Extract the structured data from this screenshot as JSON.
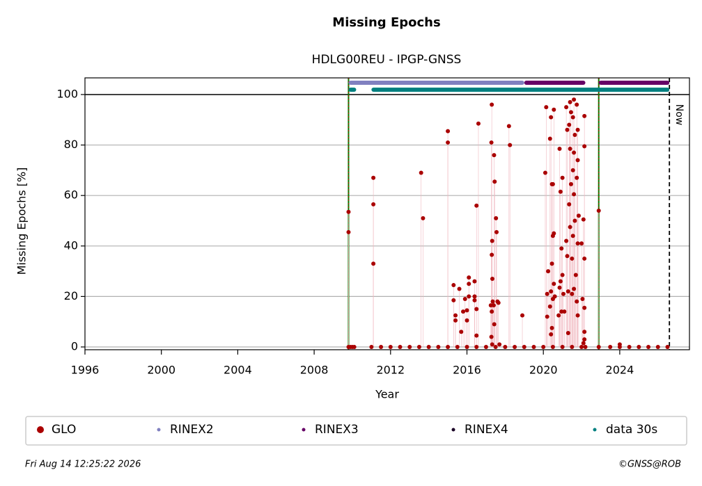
{
  "chart_data": {
    "type": "scatter",
    "title": "Missing Epochs",
    "subtitle": "HDLG00REU - IPGP-GNSS",
    "xlabel": "Year",
    "ylabel": "Missing Epochs [%]",
    "xlim": [
      1996,
      2027.65
    ],
    "ylim": [
      -1.1,
      106.6
    ],
    "xticks": [
      1996,
      2000,
      2004,
      2008,
      2012,
      2016,
      2020,
      2024
    ],
    "yticks": [
      0,
      20,
      40,
      60,
      80,
      100
    ],
    "grid": true,
    "series": [
      {
        "name": "GLO",
        "color": "#aa0000",
        "x": [
          2009.8,
          2009.8,
          2011.1,
          2011.1,
          2011.1,
          2013.6,
          2013.7,
          2015.0,
          2015.0,
          2015.3,
          2015.3,
          2015.4,
          2015.4,
          2015.6,
          2015.7,
          2015.8,
          2015.9,
          2016.0,
          2016.0,
          2016.1,
          2016.1,
          2016.1,
          2016.4,
          2016.4,
          2016.4,
          2016.5,
          2016.5,
          2016.5,
          2016.6,
          2017.3,
          2017.28,
          2017.32,
          2017.3,
          2017.33,
          2017.35,
          2017.25,
          2017.3,
          2017.28,
          2017.32,
          2017.42,
          2017.45,
          2017.4,
          2017.43,
          2017.52,
          2017.55,
          2017.6,
          2017.65,
          2017.7,
          2018.2,
          2018.25,
          2018.9,
          2020.15,
          2020.1,
          2020.25,
          2020.2,
          2020.2,
          2020.35,
          2020.4,
          2020.45,
          2020.45,
          2020.4,
          2020.5,
          2020.35,
          2020.45,
          2020.4,
          2020.55,
          2020.5,
          2020.55,
          2020.5,
          2020.55,
          2020.6,
          2020.85,
          2020.9,
          2020.95,
          2020.9,
          2020.85,
          2020.95,
          2020.8,
          2021.0,
          2021.0,
          2021.05,
          2021.1,
          2021.2,
          2021.25,
          2021.2,
          2021.25,
          2021.3,
          2021.3,
          2021.4,
          2021.45,
          2021.35,
          2021.4,
          2021.45,
          2021.35,
          2021.4,
          2021.5,
          2021.5,
          2021.6,
          2021.55,
          2021.65,
          2021.6,
          2021.55,
          2021.6,
          2021.65,
          2021.55,
          2021.7,
          2021.6,
          2021.75,
          2021.8,
          2021.8,
          2021.75,
          2021.85,
          2021.8,
          2021.75,
          2021.8,
          2022.15,
          2022.15,
          2022.1,
          2022.0,
          2022.15,
          2022.05,
          2022.15,
          2022.15,
          2022.15,
          2022.1,
          2022.9,
          2024.0,
          2009.8,
          2009.9,
          2010.0,
          2010.1,
          2011.0,
          2011.5,
          2012.0,
          2012.5,
          2013.0,
          2013.5,
          2014.0,
          2014.5,
          2015.0,
          2015.5,
          2016.0,
          2016.5,
          2017.0,
          2017.5,
          2018.0,
          2018.5,
          2019.0,
          2019.5,
          2020.0,
          2020.5,
          2021.0,
          2021.5,
          2022.0,
          2022.2,
          2022.9,
          2023.5,
          2024.0,
          2024.5,
          2025.0,
          2025.5,
          2026.0,
          2026.5
        ],
        "values": [
          53.5,
          45.5,
          67,
          56.5,
          33,
          69,
          51,
          85.5,
          81,
          24.5,
          18.5,
          12.5,
          10.5,
          23,
          6,
          14,
          19,
          14.5,
          10.5,
          25,
          27.5,
          20,
          26,
          20,
          18.5,
          56,
          4.5,
          15,
          88.5,
          96,
          81,
          42,
          36.5,
          27,
          18,
          16.5,
          14,
          4,
          1,
          76,
          65.5,
          16.5,
          9,
          51,
          45.5,
          18,
          17.5,
          1,
          87.5,
          80,
          12.5,
          95,
          69,
          30,
          21,
          12,
          82.5,
          91,
          64.5,
          33,
          22,
          19,
          16,
          7.5,
          5,
          94,
          64.5,
          45,
          44,
          25,
          20,
          78.5,
          61.5,
          39,
          26,
          23.5,
          14,
          12.5,
          67,
          28.5,
          21,
          14,
          95,
          86,
          42,
          36,
          22,
          5.5,
          97,
          93,
          88,
          78.5,
          64.5,
          56.5,
          47.5,
          35,
          21,
          98,
          91,
          84,
          77,
          70,
          60.5,
          50,
          44,
          28.5,
          23,
          96,
          86,
          74,
          67,
          52,
          41,
          18,
          12.5,
          91.5,
          79.5,
          50.5,
          41,
          35,
          19,
          15.5,
          6,
          3,
          1.5,
          54,
          1,
          0,
          0,
          0,
          0,
          0,
          0,
          0,
          0,
          0,
          0,
          0,
          0,
          0,
          0,
          0,
          0,
          0,
          0,
          0,
          0,
          0,
          0,
          0,
          0,
          0,
          0,
          0,
          0,
          0,
          0,
          0,
          0,
          0,
          0,
          0,
          0
        ]
      }
    ],
    "spans": [
      {
        "name": "RINEX2",
        "color": "#8080c0",
        "intervals": [
          [
            2009.8,
            2019.0
          ]
        ]
      },
      {
        "name": "RINEX3",
        "color": "#660066",
        "intervals": [
          [
            2019.0,
            2022.2
          ],
          [
            2022.9,
            2026.6
          ]
        ]
      },
      {
        "name": "RINEX4",
        "color": "#1a0026",
        "intervals": []
      },
      {
        "name": "data 30s",
        "color": "#008080",
        "intervals": [
          [
            2009.8,
            2010.2
          ],
          [
            2011.0,
            2026.6
          ]
        ]
      }
    ],
    "event_lines": [
      2009.8,
      2022.9
    ],
    "now": {
      "value": 2026.6,
      "label": "Now"
    }
  },
  "footer": {
    "timestamp": "Fri Aug 14 12:25:22 2026",
    "credit": "©GNSS@ROB"
  }
}
